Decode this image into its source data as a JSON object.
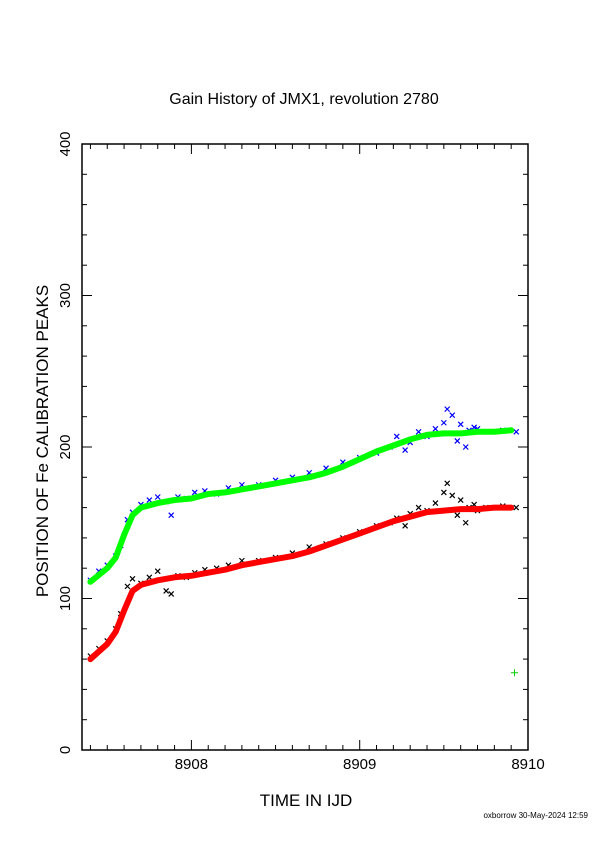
{
  "chart_data": {
    "type": "scatter",
    "title": "Gain History of JMX1, revolution 2780",
    "xlabel": "TIME IN IJD",
    "ylabel": "POSITION OF Fe CALIBRATION PEAKS",
    "xlim": [
      8907.35,
      8910
    ],
    "ylim": [
      0,
      400
    ],
    "x_ticks": [
      8908,
      8909,
      8910
    ],
    "x_tick_labels": [
      "8908",
      "8909",
      "8910"
    ],
    "y_ticks": [
      0,
      100,
      200,
      300,
      400
    ],
    "y_tick_labels": [
      "0",
      "100",
      "200",
      "300",
      "400"
    ],
    "grid": false,
    "legend": "none",
    "series": [
      {
        "marker": "x",
        "color": "#0000ff",
        "x": [
          8907.4,
          8907.45,
          8907.5,
          8907.55,
          8907.58,
          8907.62,
          8907.65,
          8907.7,
          8907.75,
          8907.8,
          8907.85,
          8907.88,
          8907.92,
          8907.97,
          8908.02,
          8908.08,
          8908.15,
          8908.22,
          8908.3,
          8908.4,
          8908.5,
          8908.6,
          8908.7,
          8908.8,
          8908.9,
          8909.0,
          8909.1,
          8909.18,
          8909.22,
          8909.27,
          8909.3,
          8909.35,
          8909.4,
          8909.45,
          8909.5,
          8909.52,
          8909.55,
          8909.58,
          8909.6,
          8909.63,
          8909.65,
          8909.68,
          8909.7,
          8909.75,
          8909.85,
          8909.93
        ],
        "y": [
          112,
          118,
          122,
          128,
          135,
          152,
          157,
          162,
          165,
          167,
          164,
          155,
          167,
          166,
          170,
          171,
          169,
          173,
          175,
          175,
          178,
          180,
          183,
          186,
          190,
          193,
          196,
          200,
          207,
          198,
          203,
          210,
          207,
          212,
          216,
          225,
          221,
          204,
          215,
          200,
          211,
          213,
          212,
          210,
          211,
          210
        ]
      },
      {
        "marker": "x",
        "color": "#000000",
        "x": [
          8907.4,
          8907.45,
          8907.5,
          8907.55,
          8907.58,
          8907.62,
          8907.65,
          8907.7,
          8907.75,
          8907.8,
          8907.85,
          8907.88,
          8907.92,
          8907.97,
          8908.02,
          8908.08,
          8908.15,
          8908.22,
          8908.3,
          8908.4,
          8908.5,
          8908.6,
          8908.7,
          8908.8,
          8908.9,
          8909.0,
          8909.1,
          8909.18,
          8909.22,
          8909.27,
          8909.3,
          8909.35,
          8909.4,
          8909.45,
          8909.5,
          8909.52,
          8909.55,
          8909.58,
          8909.6,
          8909.63,
          8909.65,
          8909.68,
          8909.7,
          8909.75,
          8909.85,
          8909.93
        ],
        "y": [
          62,
          67,
          72,
          80,
          90,
          108,
          113,
          110,
          114,
          118,
          105,
          103,
          115,
          114,
          117,
          119,
          120,
          122,
          125,
          125,
          127,
          130,
          134,
          136,
          140,
          144,
          148,
          150,
          153,
          148,
          156,
          160,
          158,
          163,
          170,
          176,
          168,
          155,
          165,
          150,
          160,
          162,
          158,
          160,
          161,
          160
        ]
      },
      {
        "marker": "line",
        "color": "#00ff00",
        "x": [
          8907.4,
          8907.5,
          8907.55,
          8907.6,
          8907.65,
          8907.7,
          8907.8,
          8907.9,
          8908.0,
          8908.1,
          8908.2,
          8908.3,
          8908.4,
          8908.5,
          8908.6,
          8908.7,
          8908.8,
          8908.9,
          8909.0,
          8909.1,
          8909.2,
          8909.3,
          8909.4,
          8909.5,
          8909.6,
          8909.7,
          8909.8,
          8909.9
        ],
        "y": [
          111,
          120,
          127,
          142,
          155,
          160,
          163,
          165,
          166,
          169,
          170,
          172,
          174,
          176,
          178,
          180,
          183,
          187,
          192,
          197,
          201,
          205,
          208,
          209,
          209,
          210,
          210,
          211
        ]
      },
      {
        "marker": "line",
        "color": "#ff0000",
        "x": [
          8907.4,
          8907.5,
          8907.55,
          8907.6,
          8907.65,
          8907.7,
          8907.8,
          8907.9,
          8908.0,
          8908.1,
          8908.2,
          8908.3,
          8908.4,
          8908.5,
          8908.6,
          8908.7,
          8908.8,
          8908.9,
          8909.0,
          8909.1,
          8909.2,
          8909.3,
          8909.4,
          8909.5,
          8909.6,
          8909.7,
          8909.8,
          8909.9
        ],
        "y": [
          60,
          70,
          78,
          92,
          105,
          109,
          112,
          114,
          115,
          117,
          119,
          122,
          124,
          126,
          128,
          131,
          135,
          139,
          143,
          147,
          151,
          154,
          157,
          158,
          159,
          159,
          160,
          160
        ]
      },
      {
        "marker": "+",
        "color": "#00cc00",
        "x": [
          8909.92
        ],
        "y": [
          51
        ]
      }
    ],
    "footer": "oxborrow 30-May-2024 12:59"
  }
}
